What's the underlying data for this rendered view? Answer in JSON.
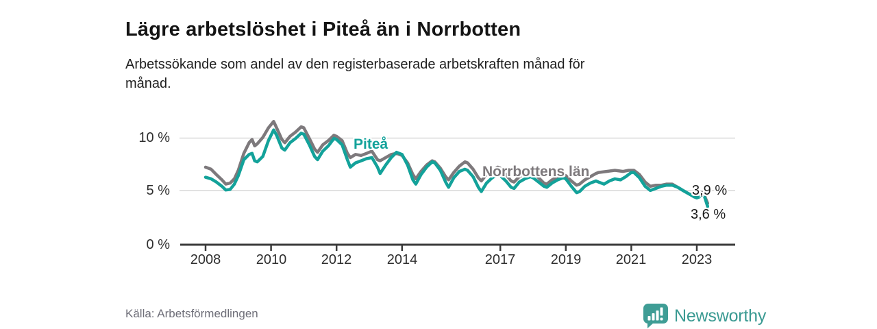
{
  "header": {
    "title": "Lägre arbetslöshet i Piteå än i Norrbotten",
    "subtitle": "Arbetssökande som andel av den registerbaserade arbetskraften månad för månad."
  },
  "chart_data": {
    "type": "line",
    "title": "Lägre arbetslöshet i Piteå än i Norrbotten",
    "subtitle": "Arbetssökande som andel av den registerbaserade arbetskraften månad för månad.",
    "unit": "%",
    "x_range": [
      2008,
      2023.42
    ],
    "ylim": [
      0,
      12
    ],
    "grid": "horizontal",
    "legend": "inline-labels",
    "y_tick_labels": [
      "10 %",
      "5 %",
      "0 %"
    ],
    "y_tick_values": [
      10,
      5,
      0
    ],
    "x_tick_labels": [
      "2008",
      "2010",
      "2012",
      "2014",
      "2017",
      "2019",
      "2021",
      "2023"
    ],
    "series": [
      {
        "name": "Norrbottens län",
        "color": "#7d797c",
        "latest_label": "3,9 %",
        "latest_value": 3.9,
        "points": [
          [
            2008.0,
            7.3
          ],
          [
            2008.17,
            7.1
          ],
          [
            2008.33,
            6.6
          ],
          [
            2008.5,
            6.1
          ],
          [
            2008.62,
            5.7
          ],
          [
            2008.75,
            5.8
          ],
          [
            2008.88,
            6.2
          ],
          [
            2009.0,
            7.0
          ],
          [
            2009.17,
            8.6
          ],
          [
            2009.33,
            9.6
          ],
          [
            2009.42,
            9.9
          ],
          [
            2009.5,
            9.3
          ],
          [
            2009.58,
            9.5
          ],
          [
            2009.75,
            10.1
          ],
          [
            2009.92,
            11.0
          ],
          [
            2010.08,
            11.6
          ],
          [
            2010.17,
            11.0
          ],
          [
            2010.33,
            9.9
          ],
          [
            2010.42,
            9.6
          ],
          [
            2010.58,
            10.2
          ],
          [
            2010.75,
            10.6
          ],
          [
            2010.92,
            11.1
          ],
          [
            2011.0,
            11.0
          ],
          [
            2011.17,
            10.0
          ],
          [
            2011.33,
            9.0
          ],
          [
            2011.42,
            8.7
          ],
          [
            2011.58,
            9.4
          ],
          [
            2011.75,
            9.8
          ],
          [
            2011.92,
            10.3
          ],
          [
            2012.0,
            10.2
          ],
          [
            2012.17,
            9.8
          ],
          [
            2012.33,
            8.6
          ],
          [
            2012.42,
            8.2
          ],
          [
            2012.58,
            8.5
          ],
          [
            2012.75,
            8.4
          ],
          [
            2012.92,
            8.6
          ],
          [
            2013.08,
            8.8
          ],
          [
            2013.25,
            8.0
          ],
          [
            2013.33,
            7.9
          ],
          [
            2013.5,
            8.2
          ],
          [
            2013.67,
            8.5
          ],
          [
            2013.83,
            8.6
          ],
          [
            2014.0,
            8.4
          ],
          [
            2014.17,
            7.7
          ],
          [
            2014.33,
            6.6
          ],
          [
            2014.42,
            6.2
          ],
          [
            2014.58,
            6.9
          ],
          [
            2014.75,
            7.5
          ],
          [
            2014.92,
            7.9
          ],
          [
            2015.0,
            7.8
          ],
          [
            2015.17,
            7.2
          ],
          [
            2015.33,
            6.4
          ],
          [
            2015.42,
            6.1
          ],
          [
            2015.58,
            6.8
          ],
          [
            2015.75,
            7.4
          ],
          [
            2015.92,
            7.8
          ],
          [
            2016.0,
            7.7
          ],
          [
            2016.17,
            7.1
          ],
          [
            2016.33,
            6.3
          ],
          [
            2016.42,
            6.0
          ],
          [
            2016.58,
            6.6
          ],
          [
            2016.75,
            7.0
          ],
          [
            2016.92,
            7.3
          ],
          [
            2017.0,
            7.2
          ],
          [
            2017.17,
            6.6
          ],
          [
            2017.33,
            6.0
          ],
          [
            2017.42,
            5.9
          ],
          [
            2017.58,
            6.4
          ],
          [
            2017.75,
            6.7
          ],
          [
            2017.92,
            6.9
          ],
          [
            2018.0,
            6.8
          ],
          [
            2018.17,
            6.3
          ],
          [
            2018.33,
            5.8
          ],
          [
            2018.42,
            5.7
          ],
          [
            2018.58,
            6.1
          ],
          [
            2018.75,
            6.4
          ],
          [
            2018.92,
            6.6
          ],
          [
            2019.0,
            6.5
          ],
          [
            2019.17,
            6.0
          ],
          [
            2019.33,
            5.6
          ],
          [
            2019.42,
            5.7
          ],
          [
            2019.58,
            6.1
          ],
          [
            2019.75,
            6.4
          ],
          [
            2019.92,
            6.7
          ],
          [
            2020.0,
            6.8
          ],
          [
            2020.25,
            6.9
          ],
          [
            2020.5,
            7.0
          ],
          [
            2020.75,
            6.9
          ],
          [
            2020.92,
            7.0
          ],
          [
            2021.08,
            7.0
          ],
          [
            2021.25,
            6.6
          ],
          [
            2021.42,
            5.9
          ],
          [
            2021.58,
            5.5
          ],
          [
            2021.75,
            5.6
          ],
          [
            2021.92,
            5.6
          ],
          [
            2022.08,
            5.7
          ],
          [
            2022.25,
            5.7
          ],
          [
            2022.42,
            5.4
          ],
          [
            2022.58,
            5.1
          ],
          [
            2022.75,
            4.8
          ],
          [
            2022.92,
            4.6
          ],
          [
            2023.0,
            4.5
          ],
          [
            2023.08,
            4.6
          ],
          [
            2023.17,
            4.9
          ],
          [
            2023.25,
            4.5
          ],
          [
            2023.33,
            3.9
          ]
        ]
      },
      {
        "name": "Piteå",
        "color": "#13a29a",
        "latest_label": "3,6 %",
        "latest_value": 3.6,
        "points": [
          [
            2008.0,
            6.35
          ],
          [
            2008.17,
            6.2
          ],
          [
            2008.33,
            5.9
          ],
          [
            2008.5,
            5.5
          ],
          [
            2008.62,
            5.15
          ],
          [
            2008.75,
            5.2
          ],
          [
            2008.88,
            5.7
          ],
          [
            2009.0,
            6.5
          ],
          [
            2009.17,
            8.0
          ],
          [
            2009.33,
            8.5
          ],
          [
            2009.42,
            8.6
          ],
          [
            2009.5,
            7.9
          ],
          [
            2009.58,
            7.8
          ],
          [
            2009.75,
            8.3
          ],
          [
            2009.92,
            9.8
          ],
          [
            2010.08,
            10.8
          ],
          [
            2010.17,
            10.3
          ],
          [
            2010.33,
            9.1
          ],
          [
            2010.42,
            8.9
          ],
          [
            2010.58,
            9.6
          ],
          [
            2010.75,
            10.0
          ],
          [
            2010.92,
            10.5
          ],
          [
            2011.0,
            10.4
          ],
          [
            2011.17,
            9.4
          ],
          [
            2011.33,
            8.3
          ],
          [
            2011.42,
            8.0
          ],
          [
            2011.58,
            8.8
          ],
          [
            2011.75,
            9.3
          ],
          [
            2011.92,
            10.0
          ],
          [
            2012.0,
            9.9
          ],
          [
            2012.17,
            9.4
          ],
          [
            2012.33,
            8.0
          ],
          [
            2012.42,
            7.3
          ],
          [
            2012.58,
            7.7
          ],
          [
            2012.75,
            7.9
          ],
          [
            2012.92,
            8.1
          ],
          [
            2013.08,
            8.2
          ],
          [
            2013.25,
            7.3
          ],
          [
            2013.33,
            6.7
          ],
          [
            2013.5,
            7.5
          ],
          [
            2013.67,
            8.2
          ],
          [
            2013.83,
            8.7
          ],
          [
            2014.0,
            8.5
          ],
          [
            2014.17,
            7.5
          ],
          [
            2014.33,
            6.1
          ],
          [
            2014.42,
            5.7
          ],
          [
            2014.58,
            6.6
          ],
          [
            2014.75,
            7.3
          ],
          [
            2014.92,
            7.8
          ],
          [
            2015.0,
            7.7
          ],
          [
            2015.17,
            7.0
          ],
          [
            2015.33,
            5.9
          ],
          [
            2015.42,
            5.4
          ],
          [
            2015.58,
            6.3
          ],
          [
            2015.75,
            6.9
          ],
          [
            2015.92,
            7.1
          ],
          [
            2016.0,
            7.0
          ],
          [
            2016.17,
            6.4
          ],
          [
            2016.33,
            5.4
          ],
          [
            2016.42,
            5.0
          ],
          [
            2016.58,
            5.8
          ],
          [
            2016.75,
            6.3
          ],
          [
            2016.92,
            6.6
          ],
          [
            2017.0,
            6.5
          ],
          [
            2017.17,
            6.0
          ],
          [
            2017.33,
            5.4
          ],
          [
            2017.42,
            5.3
          ],
          [
            2017.58,
            5.9
          ],
          [
            2017.75,
            6.2
          ],
          [
            2017.92,
            6.4
          ],
          [
            2018.0,
            6.3
          ],
          [
            2018.17,
            5.9
          ],
          [
            2018.33,
            5.5
          ],
          [
            2018.42,
            5.4
          ],
          [
            2018.58,
            5.8
          ],
          [
            2018.75,
            6.1
          ],
          [
            2018.92,
            6.3
          ],
          [
            2019.0,
            6.2
          ],
          [
            2019.17,
            5.5
          ],
          [
            2019.33,
            4.9
          ],
          [
            2019.42,
            5.0
          ],
          [
            2019.58,
            5.5
          ],
          [
            2019.75,
            5.8
          ],
          [
            2019.92,
            6.0
          ],
          [
            2020.0,
            5.9
          ],
          [
            2020.17,
            5.7
          ],
          [
            2020.33,
            6.0
          ],
          [
            2020.5,
            6.2
          ],
          [
            2020.67,
            6.1
          ],
          [
            2020.83,
            6.4
          ],
          [
            2021.0,
            6.8
          ],
          [
            2021.08,
            6.8
          ],
          [
            2021.25,
            6.3
          ],
          [
            2021.42,
            5.5
          ],
          [
            2021.58,
            5.1
          ],
          [
            2021.75,
            5.3
          ],
          [
            2021.92,
            5.5
          ],
          [
            2022.08,
            5.6
          ],
          [
            2022.25,
            5.6
          ],
          [
            2022.42,
            5.4
          ],
          [
            2022.58,
            5.1
          ],
          [
            2022.75,
            4.8
          ],
          [
            2022.92,
            4.5
          ],
          [
            2023.0,
            4.4
          ],
          [
            2023.08,
            4.5
          ],
          [
            2023.17,
            4.8
          ],
          [
            2023.25,
            4.4
          ],
          [
            2023.33,
            3.6
          ]
        ]
      }
    ]
  },
  "footer": {
    "source": "Källa: Arbetsförmedlingen",
    "brand": "Newsworthy"
  },
  "colors": {
    "pitea_line": "#13a29a",
    "norrbotten_line": "#7d797c",
    "brand_teal": "#3f9d95",
    "gridline": "#d9d9d9",
    "axis": "#3a3a3a"
  }
}
